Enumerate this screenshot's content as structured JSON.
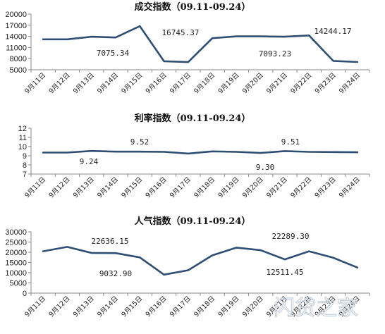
{
  "chart_data": [
    {
      "type": "line",
      "title": "成交指数（09.11-09.24）",
      "categories": [
        "9月11日",
        "9月12日",
        "9月13日",
        "9月14日",
        "9月15日",
        "9月16日",
        "9月17日",
        "9月18日",
        "9月19日",
        "9月20日",
        "9月21日",
        "9月22日",
        "9月23日",
        "9月24日"
      ],
      "values": [
        13200,
        13200,
        13900,
        13700,
        16745.37,
        7300,
        7075.34,
        13500,
        14000,
        14000,
        13900,
        14244.17,
        7400,
        7093.23
      ],
      "ylim": [
        5000,
        20000
      ],
      "yticks": [
        "5000",
        "8000",
        "11000",
        "14000",
        "17000",
        "20000"
      ],
      "annotations": [
        "16745.37",
        "7075.34",
        "14244.17",
        "7093.23"
      ]
    },
    {
      "type": "line",
      "title": "利率指数（09.11-09.24）",
      "categories": [
        "9月11日",
        "9月12日",
        "9月13日",
        "9月14日",
        "9月15日",
        "9月16日",
        "9月17日",
        "9月18日",
        "9月19日",
        "9月20日",
        "9月21日",
        "9月22日",
        "9月23日",
        "9月24日"
      ],
      "values": [
        9.35,
        9.35,
        9.52,
        9.45,
        9.45,
        9.42,
        9.24,
        9.48,
        9.42,
        9.3,
        9.51,
        9.42,
        9.4,
        9.38
      ],
      "ylim": [
        7,
        12
      ],
      "yticks": [
        "7",
        "8",
        "9",
        "10",
        "11",
        "12"
      ],
      "annotations": [
        "9.52",
        "9.24",
        "9.51",
        "9.30"
      ]
    },
    {
      "type": "line",
      "title": "人气指数（09.11-09.24）",
      "categories": [
        "9月11日",
        "9月12日",
        "9月13日",
        "9月14日",
        "9月15日",
        "9月16日",
        "9月17日",
        "9月18日",
        "9月19日",
        "9月20日",
        "9月21日",
        "9月22日",
        "9月23日",
        "9月24日"
      ],
      "values": [
        20500,
        22636.15,
        19700,
        19600,
        17500,
        9032.9,
        11200,
        18500,
        22289.3,
        21000,
        16500,
        20500,
        17300,
        12511.45
      ],
      "ylim": [
        0,
        30000
      ],
      "yticks": [
        "0",
        "5000",
        "10000",
        "15000",
        "20000",
        "25000",
        "30000"
      ],
      "annotations": [
        "22636.15",
        "9032.90",
        "22289.30",
        "12511.45"
      ]
    }
  ],
  "colors": {
    "series": "#2f4e74",
    "axis": "#8a8a8a"
  },
  "watermark": "闪贷之家"
}
